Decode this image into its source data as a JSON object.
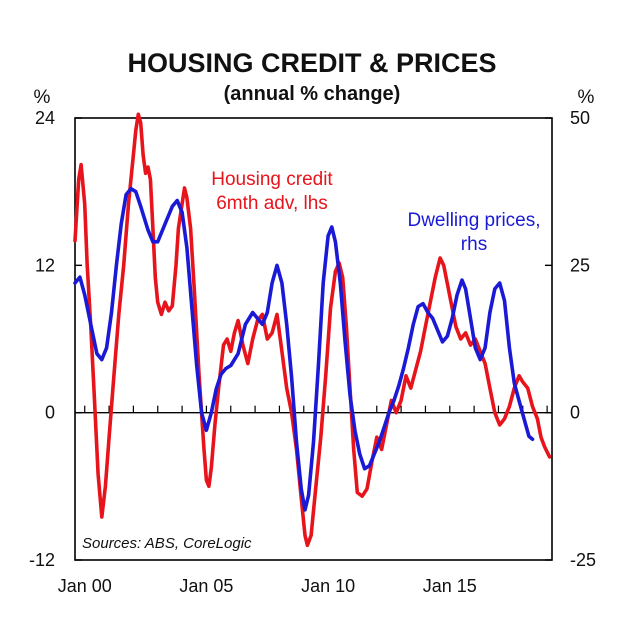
{
  "chart_data": {
    "type": "line",
    "title": "HOUSING CREDIT & PRICES",
    "subtitle": "(annual % change)",
    "left_axis_unit": "%",
    "right_axis_unit": "%",
    "x_ticks": [
      "Jan 00",
      "Jan 05",
      "Jan 10",
      "Jan 15"
    ],
    "x_range": [
      1999.6,
      2019.2
    ],
    "left_axis": {
      "min": -12,
      "max": 24,
      "ticks": [
        -12,
        0,
        12,
        24
      ]
    },
    "right_axis": {
      "min": -25,
      "max": 50,
      "ticks": [
        -25,
        0,
        25,
        50
      ]
    },
    "grid": false,
    "zero_line": true,
    "source_note": "Sources: ABS, CoreLogic",
    "colors": {
      "credit": "#e8141b",
      "prices": "#1a1ad6",
      "axis": "#000000"
    },
    "series": [
      {
        "name": "Housing credit 6mth adv, lhs",
        "label_lines": [
          "Housing credit",
          "6mth adv, lhs"
        ],
        "axis": "left",
        "color": "#e8141b",
        "points": [
          [
            1999.6,
            14
          ],
          [
            1999.75,
            19
          ],
          [
            1999.85,
            20.2
          ],
          [
            2000.0,
            17
          ],
          [
            2000.1,
            12
          ],
          [
            2000.25,
            7
          ],
          [
            2000.4,
            1
          ],
          [
            2000.55,
            -5
          ],
          [
            2000.7,
            -8.5
          ],
          [
            2000.85,
            -6
          ],
          [
            2001.0,
            -2
          ],
          [
            2001.2,
            3
          ],
          [
            2001.4,
            8
          ],
          [
            2001.6,
            12
          ],
          [
            2001.8,
            17
          ],
          [
            2002.0,
            21
          ],
          [
            2002.1,
            23
          ],
          [
            2002.2,
            24.3
          ],
          [
            2002.3,
            23.6
          ],
          [
            2002.4,
            21
          ],
          [
            2002.5,
            19.5
          ],
          [
            2002.6,
            20
          ],
          [
            2002.7,
            19
          ],
          [
            2002.8,
            15
          ],
          [
            2002.9,
            11
          ],
          [
            2003.0,
            9
          ],
          [
            2003.15,
            8
          ],
          [
            2003.3,
            9
          ],
          [
            2003.45,
            8.3
          ],
          [
            2003.6,
            8.7
          ],
          [
            2003.75,
            12
          ],
          [
            2003.85,
            15
          ],
          [
            2004.0,
            17
          ],
          [
            2004.1,
            18.3
          ],
          [
            2004.2,
            17.5
          ],
          [
            2004.35,
            15
          ],
          [
            2004.5,
            10
          ],
          [
            2004.7,
            3
          ],
          [
            2004.9,
            -3
          ],
          [
            2005.0,
            -5.5
          ],
          [
            2005.1,
            -6
          ],
          [
            2005.2,
            -4.5
          ],
          [
            2005.35,
            -1
          ],
          [
            2005.5,
            2
          ],
          [
            2005.7,
            5.5
          ],
          [
            2005.85,
            6
          ],
          [
            2006.0,
            5
          ],
          [
            2006.15,
            6.5
          ],
          [
            2006.3,
            7.5
          ],
          [
            2006.5,
            5.5
          ],
          [
            2006.7,
            4
          ],
          [
            2006.9,
            6
          ],
          [
            2007.1,
            7.5
          ],
          [
            2007.3,
            8
          ],
          [
            2007.5,
            6
          ],
          [
            2007.7,
            6.5
          ],
          [
            2007.9,
            8
          ],
          [
            2008.1,
            5
          ],
          [
            2008.3,
            2
          ],
          [
            2008.5,
            0
          ],
          [
            2008.7,
            -3
          ],
          [
            2008.9,
            -7
          ],
          [
            2009.05,
            -10
          ],
          [
            2009.15,
            -10.8
          ],
          [
            2009.3,
            -10
          ],
          [
            2009.5,
            -6
          ],
          [
            2009.7,
            -2
          ],
          [
            2009.9,
            3
          ],
          [
            2010.1,
            8.5
          ],
          [
            2010.3,
            11.5
          ],
          [
            2010.45,
            12.2
          ],
          [
            2010.6,
            11
          ],
          [
            2010.75,
            7
          ],
          [
            2010.9,
            2
          ],
          [
            2011.05,
            -3
          ],
          [
            2011.2,
            -6.5
          ],
          [
            2011.4,
            -6.8
          ],
          [
            2011.6,
            -6.2
          ],
          [
            2011.8,
            -4
          ],
          [
            2012.0,
            -2
          ],
          [
            2012.2,
            -3
          ],
          [
            2012.4,
            -1
          ],
          [
            2012.6,
            1
          ],
          [
            2012.8,
            0
          ],
          [
            2013.0,
            1
          ],
          [
            2013.2,
            3
          ],
          [
            2013.4,
            2
          ],
          [
            2013.6,
            3.5
          ],
          [
            2013.8,
            5
          ],
          [
            2014.0,
            7
          ],
          [
            2014.2,
            9
          ],
          [
            2014.4,
            11
          ],
          [
            2014.6,
            12.6
          ],
          [
            2014.75,
            12
          ],
          [
            2014.9,
            10.5
          ],
          [
            2015.05,
            9
          ],
          [
            2015.25,
            7
          ],
          [
            2015.45,
            6
          ],
          [
            2015.65,
            6.5
          ],
          [
            2015.85,
            5.5
          ],
          [
            2016.05,
            6
          ],
          [
            2016.25,
            5
          ],
          [
            2016.45,
            4
          ],
          [
            2016.65,
            2
          ],
          [
            2016.85,
            0
          ],
          [
            2017.05,
            -1
          ],
          [
            2017.25,
            -0.5
          ],
          [
            2017.45,
            0.5
          ],
          [
            2017.65,
            2
          ],
          [
            2017.85,
            3
          ],
          [
            2018.0,
            2.5
          ],
          [
            2018.2,
            2
          ],
          [
            2018.4,
            0.5
          ],
          [
            2018.6,
            -0.5
          ],
          [
            2018.75,
            -2
          ],
          [
            2018.9,
            -2.8
          ],
          [
            2019.1,
            -3.6
          ]
        ]
      },
      {
        "name": "Dwelling prices, rhs",
        "label_lines": [
          "Dwelling prices,",
          "rhs"
        ],
        "axis": "right",
        "color": "#1a1ad6",
        "points": [
          [
            1999.6,
            22
          ],
          [
            1999.8,
            23
          ],
          [
            2000.0,
            20
          ],
          [
            2000.3,
            14
          ],
          [
            2000.5,
            10
          ],
          [
            2000.7,
            9
          ],
          [
            2000.9,
            11
          ],
          [
            2001.1,
            17
          ],
          [
            2001.3,
            25
          ],
          [
            2001.5,
            32
          ],
          [
            2001.7,
            37
          ],
          [
            2001.9,
            38
          ],
          [
            2002.1,
            37.5
          ],
          [
            2002.3,
            35
          ],
          [
            2002.6,
            31
          ],
          [
            2002.8,
            29
          ],
          [
            2003.0,
            29
          ],
          [
            2003.3,
            32
          ],
          [
            2003.6,
            35
          ],
          [
            2003.8,
            36
          ],
          [
            2004.0,
            34
          ],
          [
            2004.2,
            28
          ],
          [
            2004.4,
            18
          ],
          [
            2004.6,
            8
          ],
          [
            2004.8,
            0
          ],
          [
            2005.0,
            -3
          ],
          [
            2005.2,
            0
          ],
          [
            2005.4,
            4
          ],
          [
            2005.6,
            6.5
          ],
          [
            2005.8,
            7.5
          ],
          [
            2006.0,
            8
          ],
          [
            2006.3,
            10
          ],
          [
            2006.6,
            15
          ],
          [
            2006.9,
            17
          ],
          [
            2007.1,
            16
          ],
          [
            2007.3,
            15
          ],
          [
            2007.5,
            17
          ],
          [
            2007.7,
            22
          ],
          [
            2007.9,
            25
          ],
          [
            2008.1,
            22
          ],
          [
            2008.3,
            15
          ],
          [
            2008.5,
            6
          ],
          [
            2008.7,
            -5
          ],
          [
            2008.9,
            -13
          ],
          [
            2009.05,
            -16.5
          ],
          [
            2009.2,
            -14
          ],
          [
            2009.4,
            -5
          ],
          [
            2009.6,
            8
          ],
          [
            2009.8,
            22
          ],
          [
            2010.0,
            30
          ],
          [
            2010.15,
            31.5
          ],
          [
            2010.3,
            29
          ],
          [
            2010.5,
            22
          ],
          [
            2010.7,
            12
          ],
          [
            2010.9,
            3
          ],
          [
            2011.1,
            -3
          ],
          [
            2011.3,
            -7
          ],
          [
            2011.5,
            -9.5
          ],
          [
            2011.7,
            -9
          ],
          [
            2011.9,
            -7
          ],
          [
            2012.1,
            -5
          ],
          [
            2012.3,
            -2.5
          ],
          [
            2012.5,
            0
          ],
          [
            2012.7,
            2
          ],
          [
            2012.9,
            4.5
          ],
          [
            2013.1,
            7.5
          ],
          [
            2013.3,
            11
          ],
          [
            2013.5,
            15
          ],
          [
            2013.7,
            18
          ],
          [
            2013.9,
            18.5
          ],
          [
            2014.1,
            17
          ],
          [
            2014.3,
            16
          ],
          [
            2014.5,
            14
          ],
          [
            2014.7,
            12
          ],
          [
            2014.9,
            13
          ],
          [
            2015.1,
            16
          ],
          [
            2015.3,
            20
          ],
          [
            2015.5,
            22.5
          ],
          [
            2015.65,
            21
          ],
          [
            2015.85,
            16
          ],
          [
            2016.05,
            11
          ],
          [
            2016.25,
            9
          ],
          [
            2016.45,
            11
          ],
          [
            2016.65,
            17
          ],
          [
            2016.85,
            21
          ],
          [
            2017.05,
            22
          ],
          [
            2017.25,
            19
          ],
          [
            2017.45,
            11
          ],
          [
            2017.65,
            5
          ],
          [
            2017.85,
            2
          ],
          [
            2018.05,
            -1
          ],
          [
            2018.25,
            -4
          ],
          [
            2018.4,
            -4.5
          ]
        ]
      }
    ]
  }
}
